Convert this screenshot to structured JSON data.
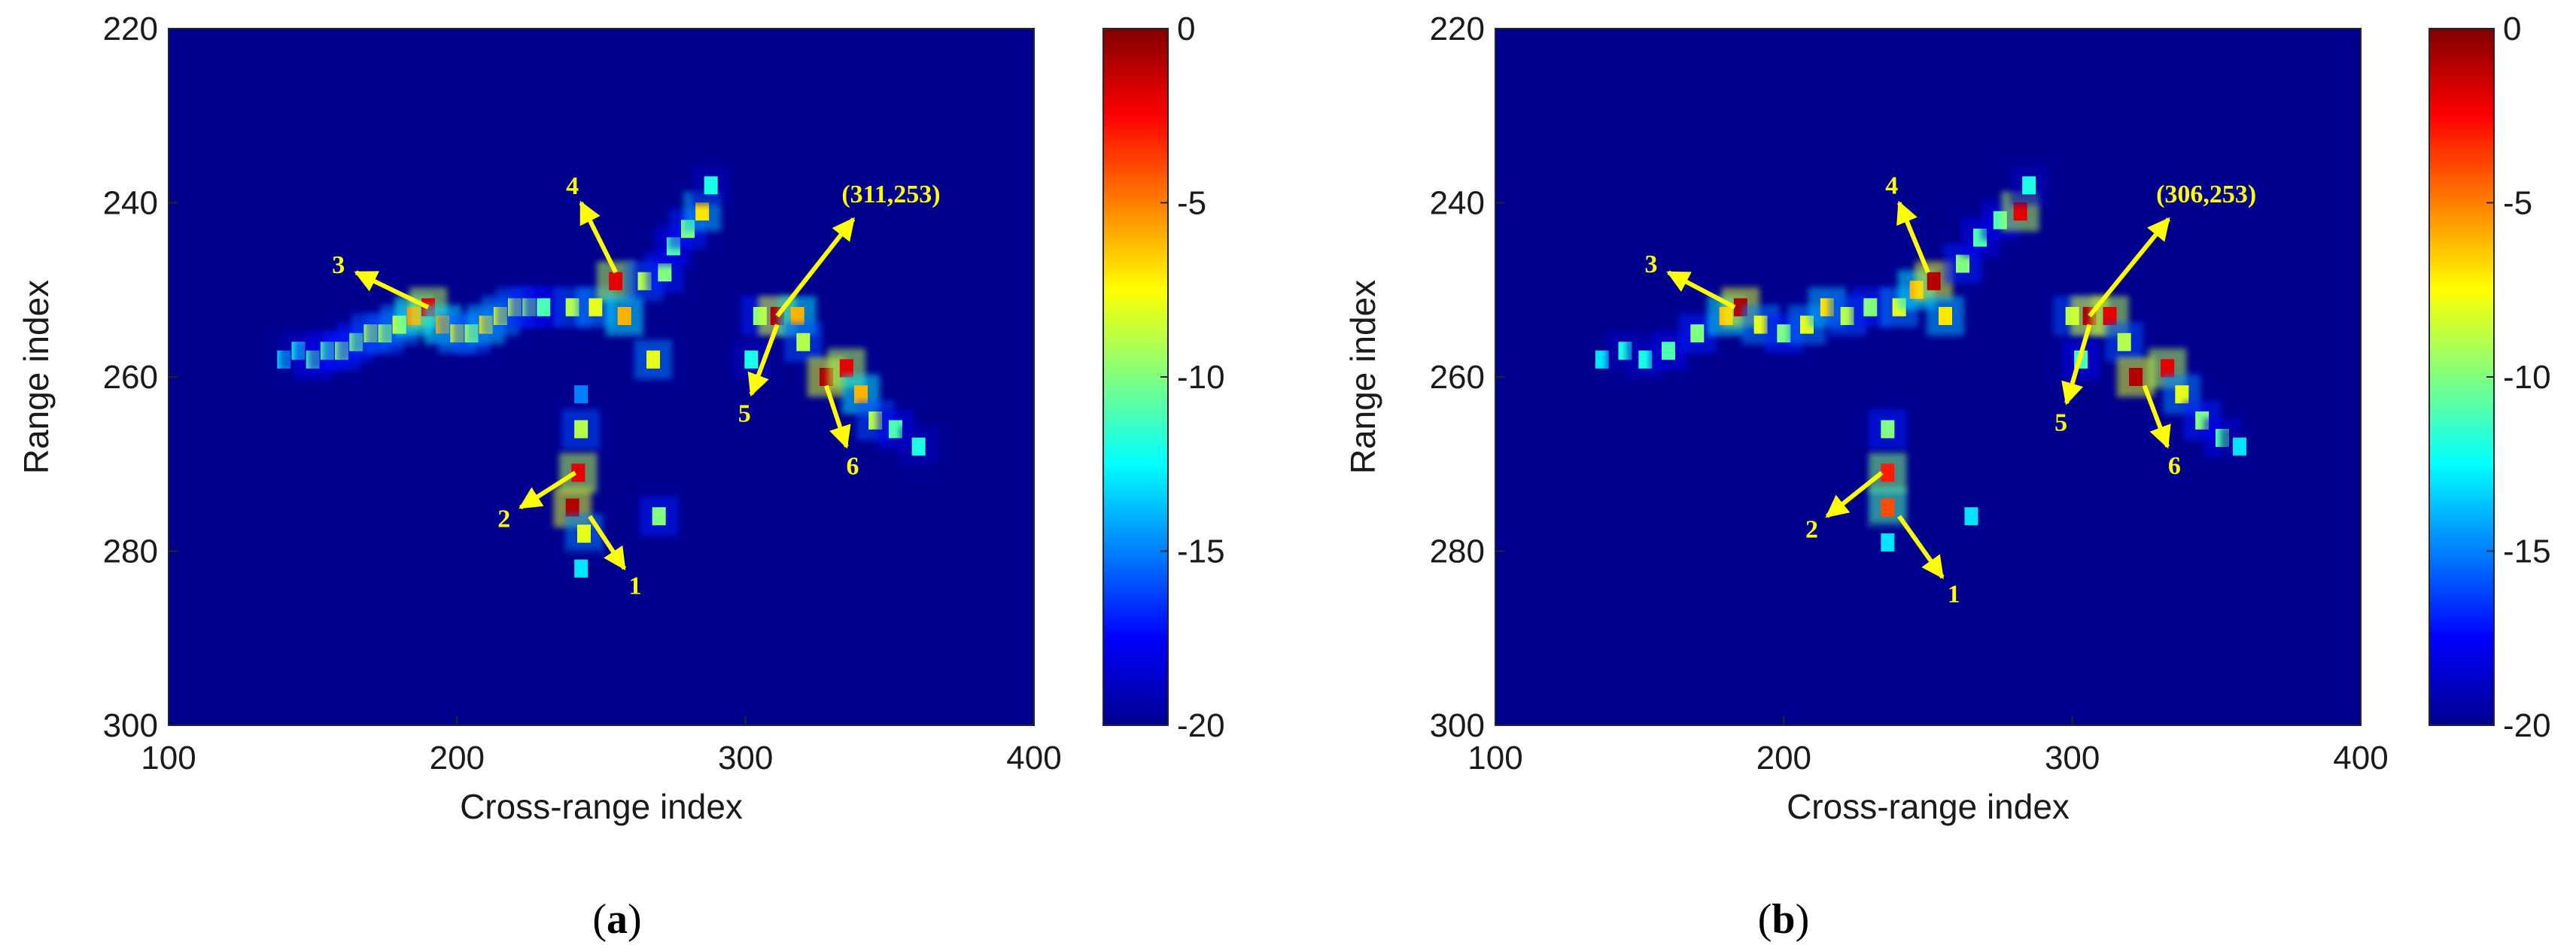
{
  "chart_data": [
    {
      "type": "heatmap",
      "caption": {
        "open": "(",
        "letter": "a",
        "close": ")"
      },
      "xlabel": "Cross-range index",
      "ylabel": "Range index",
      "xlim": [
        100,
        400
      ],
      "ylim": [
        300,
        220
      ],
      "y_axis_direction": "down",
      "xticks": [
        100,
        200,
        300,
        400
      ],
      "yticks": [
        220,
        240,
        260,
        280,
        300
      ],
      "colorbar": {
        "range": [
          -20,
          0
        ],
        "ticks": [
          0,
          -5,
          -10,
          -15,
          -20
        ],
        "colormap": "jet"
      },
      "grid": false,
      "features": [
        {
          "x": 140,
          "y": 258,
          "v": -13
        },
        {
          "x": 145,
          "y": 257,
          "v": -12
        },
        {
          "x": 150,
          "y": 258,
          "v": -11
        },
        {
          "x": 155,
          "y": 257,
          "v": -11
        },
        {
          "x": 160,
          "y": 257,
          "v": -10
        },
        {
          "x": 165,
          "y": 256,
          "v": -10
        },
        {
          "x": 170,
          "y": 255,
          "v": -9
        },
        {
          "x": 175,
          "y": 255,
          "v": -9
        },
        {
          "x": 180,
          "y": 254,
          "v": -8
        },
        {
          "x": 185,
          "y": 253,
          "v": -5
        },
        {
          "x": 190,
          "y": 252,
          "v": -2
        },
        {
          "x": 195,
          "y": 254,
          "v": -6
        },
        {
          "x": 200,
          "y": 255,
          "v": -8
        },
        {
          "x": 205,
          "y": 255,
          "v": -9
        },
        {
          "x": 210,
          "y": 254,
          "v": -7
        },
        {
          "x": 215,
          "y": 253,
          "v": -8
        },
        {
          "x": 220,
          "y": 252,
          "v": -9
        },
        {
          "x": 225,
          "y": 252,
          "v": -10
        },
        {
          "x": 230,
          "y": 252,
          "v": -11
        },
        {
          "x": 240,
          "y": 252,
          "v": -9
        },
        {
          "x": 248,
          "y": 252,
          "v": -8
        },
        {
          "x": 255,
          "y": 249,
          "v": -2
        },
        {
          "x": 258,
          "y": 253,
          "v": -6
        },
        {
          "x": 265,
          "y": 249,
          "v": -9
        },
        {
          "x": 268,
          "y": 258,
          "v": -8
        },
        {
          "x": 272,
          "y": 248,
          "v": -10
        },
        {
          "x": 275,
          "y": 245,
          "v": -11
        },
        {
          "x": 280,
          "y": 243,
          "v": -10
        },
        {
          "x": 285,
          "y": 241,
          "v": -7
        },
        {
          "x": 288,
          "y": 238,
          "v": -12
        },
        {
          "x": 243,
          "y": 262,
          "v": -15
        },
        {
          "x": 243,
          "y": 266,
          "v": -9
        },
        {
          "x": 242,
          "y": 271,
          "v": -2
        },
        {
          "x": 240,
          "y": 275,
          "v": -1
        },
        {
          "x": 244,
          "y": 278,
          "v": -8
        },
        {
          "x": 243,
          "y": 282,
          "v": -13
        },
        {
          "x": 270,
          "y": 276,
          "v": -10
        },
        {
          "x": 305,
          "y": 253,
          "v": -10
        },
        {
          "x": 311,
          "y": 253,
          "v": -1
        },
        {
          "x": 318,
          "y": 253,
          "v": -6
        },
        {
          "x": 302,
          "y": 258,
          "v": -12
        },
        {
          "x": 320,
          "y": 256,
          "v": -9
        },
        {
          "x": 328,
          "y": 260,
          "v": -1
        },
        {
          "x": 335,
          "y": 259,
          "v": -2
        },
        {
          "x": 340,
          "y": 262,
          "v": -6
        },
        {
          "x": 345,
          "y": 265,
          "v": -9
        },
        {
          "x": 352,
          "y": 266,
          "v": -11
        },
        {
          "x": 360,
          "y": 268,
          "v": -12
        }
      ],
      "annotations": [
        {
          "text": "1",
          "tail": [
            258,
            282
          ],
          "head": [
            246,
            276
          ]
        },
        {
          "text": "2",
          "tail": [
            222,
            275
          ],
          "head": [
            241,
            271
          ]
        },
        {
          "text": "3",
          "tail": [
            165,
            248
          ],
          "head": [
            190,
            252
          ]
        },
        {
          "text": "4",
          "tail": [
            243,
            240
          ],
          "head": [
            255,
            248
          ]
        },
        {
          "text": "5",
          "tail": [
            302,
            262
          ],
          "head": [
            311,
            254
          ]
        },
        {
          "text": "6",
          "tail": [
            335,
            268
          ],
          "head": [
            328,
            261
          ]
        },
        {
          "text": "(311,253)",
          "tail": [
            340,
            241
          ],
          "head": [
            311,
            253
          ]
        }
      ]
    },
    {
      "type": "heatmap",
      "caption": {
        "open": "(",
        "letter": "b",
        "close": ")"
      },
      "xlabel": "Cross-range index",
      "ylabel": "Range index",
      "xlim": [
        100,
        400
      ],
      "ylim": [
        300,
        220
      ],
      "y_axis_direction": "down",
      "xticks": [
        100,
        200,
        300,
        400
      ],
      "yticks": [
        220,
        240,
        260,
        280,
        300
      ],
      "colorbar": {
        "range": [
          -20,
          0
        ],
        "ticks": [
          0,
          -5,
          -10,
          -15,
          -20
        ],
        "colormap": "jet"
      },
      "grid": false,
      "features": [
        {
          "x": 137,
          "y": 258,
          "v": -13
        },
        {
          "x": 145,
          "y": 257,
          "v": -12
        },
        {
          "x": 152,
          "y": 258,
          "v": -12
        },
        {
          "x": 160,
          "y": 257,
          "v": -11
        },
        {
          "x": 170,
          "y": 255,
          "v": -10
        },
        {
          "x": 180,
          "y": 253,
          "v": -6
        },
        {
          "x": 185,
          "y": 252,
          "v": -1
        },
        {
          "x": 192,
          "y": 254,
          "v": -8
        },
        {
          "x": 200,
          "y": 255,
          "v": -10
        },
        {
          "x": 208,
          "y": 254,
          "v": -8
        },
        {
          "x": 215,
          "y": 252,
          "v": -7
        },
        {
          "x": 222,
          "y": 253,
          "v": -9
        },
        {
          "x": 230,
          "y": 252,
          "v": -10
        },
        {
          "x": 240,
          "y": 252,
          "v": -8
        },
        {
          "x": 246,
          "y": 250,
          "v": -6
        },
        {
          "x": 252,
          "y": 249,
          "v": -1
        },
        {
          "x": 256,
          "y": 253,
          "v": -7
        },
        {
          "x": 262,
          "y": 247,
          "v": -10
        },
        {
          "x": 268,
          "y": 244,
          "v": -11
        },
        {
          "x": 275,
          "y": 242,
          "v": -11
        },
        {
          "x": 282,
          "y": 241,
          "v": -2
        },
        {
          "x": 285,
          "y": 238,
          "v": -12
        },
        {
          "x": 236,
          "y": 266,
          "v": -10
        },
        {
          "x": 236,
          "y": 271,
          "v": -3
        },
        {
          "x": 236,
          "y": 275,
          "v": -4
        },
        {
          "x": 236,
          "y": 279,
          "v": -13
        },
        {
          "x": 265,
          "y": 276,
          "v": -13
        },
        {
          "x": 300,
          "y": 253,
          "v": -9
        },
        {
          "x": 306,
          "y": 253,
          "v": -1
        },
        {
          "x": 313,
          "y": 253,
          "v": -2
        },
        {
          "x": 303,
          "y": 258,
          "v": -11
        },
        {
          "x": 318,
          "y": 256,
          "v": -9
        },
        {
          "x": 322,
          "y": 260,
          "v": -1
        },
        {
          "x": 333,
          "y": 259,
          "v": -2
        },
        {
          "x": 338,
          "y": 262,
          "v": -8
        },
        {
          "x": 345,
          "y": 265,
          "v": -10
        },
        {
          "x": 352,
          "y": 267,
          "v": -11
        },
        {
          "x": 358,
          "y": 268,
          "v": -13
        }
      ],
      "annotations": [
        {
          "text": "1",
          "tail": [
            255,
            283
          ],
          "head": [
            240,
            276
          ]
        },
        {
          "text": "2",
          "tail": [
            215,
            276
          ],
          "head": [
            234,
            271
          ]
        },
        {
          "text": "3",
          "tail": [
            160,
            248
          ],
          "head": [
            183,
            252
          ]
        },
        {
          "text": "4",
          "tail": [
            240,
            240
          ],
          "head": [
            250,
            248
          ]
        },
        {
          "text": "5",
          "tail": [
            298,
            263
          ],
          "head": [
            306,
            254
          ]
        },
        {
          "text": "6",
          "tail": [
            333,
            268
          ],
          "head": [
            325,
            261
          ]
        },
        {
          "text": "(306,253)",
          "tail": [
            336,
            241
          ],
          "head": [
            306,
            253
          ]
        }
      ]
    }
  ]
}
